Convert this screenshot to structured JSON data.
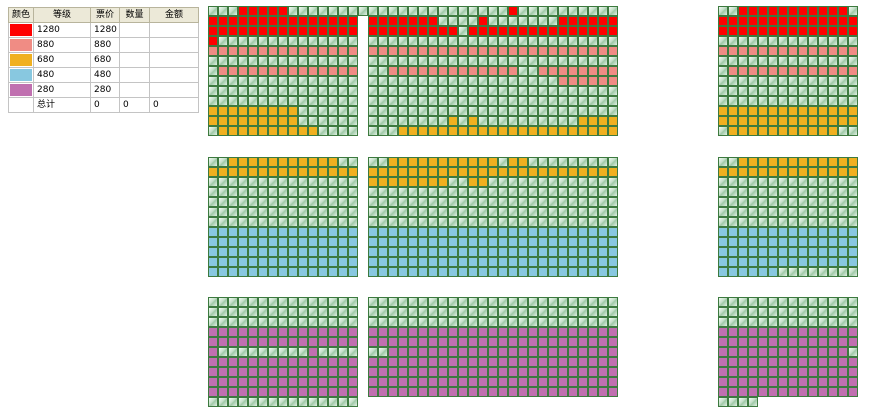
{
  "legend": {
    "headers": [
      "颜色",
      "等级",
      "票价",
      "数量",
      "金额"
    ],
    "rows": [
      {
        "color": "#ff0000",
        "level": "1280",
        "price": "1280",
        "qty": "",
        "amount": ""
      },
      {
        "color": "#f08c84",
        "level": "880",
        "price": "880",
        "qty": "",
        "amount": ""
      },
      {
        "color": "#f0b020",
        "level": "680",
        "price": "680",
        "qty": "",
        "amount": ""
      },
      {
        "color": "#88c8e0",
        "level": "480",
        "price": "480",
        "qty": "",
        "amount": ""
      },
      {
        "color": "#c070b0",
        "level": "280",
        "price": "280",
        "qty": "",
        "amount": ""
      }
    ],
    "total": {
      "label": "总计",
      "price": "0",
      "qty": "0",
      "amount": "0"
    }
  },
  "seat_colors": {
    "R": "#ff0000",
    "P": "#f08c84",
    "Y": "#f0b020",
    "B": "#88c8e0",
    "M": "#c070b0"
  },
  "blocks": [
    {
      "id": "top-left",
      "rows": [
        "...RRRRR.........",
        "RRRRRRRRRRRRRRR",
        "RRRRRRRRRRRRRRR",
        "R..............",
        "PPPPPPPPPPPPPPP",
        "...............",
        ".PPPPPPPPPPPPPP",
        "...............",
        "...............",
        "...............",
        "YYYYYYYYY......",
        "YYYYYYYYY......",
        ".YYYYYYYYYY...."
      ]
    },
    {
      "id": "top-center",
      "rows": [
        "..............R..........",
        "RRRRRRR....R.......RRRRRR",
        "RRRRRRRRR.RRRRRRRRRRRRRRR",
        ".........................",
        "PPPPPPPPPPPPPPPPPPPPPPPPP",
        ".........................",
        "..PPPPPPPPPPPPP..PPPPPPPP",
        "...................PPPPPP",
        ".........................",
        ".........................",
        ".........................",
        "........Y.Y..........YYYY",
        "...YYYYYYYYYYYYYYYYYYYYYY"
      ]
    },
    {
      "id": "top-right",
      "rows": [
        "..RRRRRRRRRRR.",
        "RRRRRRRRRRRRRR",
        "RRRRRRRRRRRRRR",
        "..............",
        "PPPPPPPPPPPPPP",
        "..............",
        ".PPPPPPPPPPPPP",
        "..............",
        "..............",
        "..............",
        "YYYYYYYYYYYYYY",
        "YYYYYYYYYYYYYY",
        ".YYYYYYYYYYY.."
      ]
    },
    {
      "id": "mid-left",
      "rows": [
        "..YYYYYYYYYYY..",
        "YYYYYYYYYYYYYYY",
        "...............",
        "...............",
        "...............",
        "...............",
        "...............",
        "BBBBBBBBBBBBBBB",
        "BBBBBBBBBBBBBBB",
        "BBBBBBBBBBBBBBB",
        "BBBBBBBBBBBBBBB",
        "BBBBBBBBBBBBBBB"
      ]
    },
    {
      "id": "mid-center",
      "rows": [
        "..YYYYYYYYYYY.YY.........",
        "YYYYYYYYYYYYYYYYYYYYYYYYY",
        "YYYYYYYY..YY.............",
        ".........................",
        ".........................",
        ".........................",
        ".........................",
        "BBBBBBBBBBBBBBBBBBBBBBBBB",
        "BBBBBBBBBBBBBBBBBBBBBBBBB",
        "BBBBBBBBBBBBBBBBBBBBBBBBB",
        "BBBBBBBBBBBBBBBBBBBBBBBBB",
        "BBBBBBBBBBBBBBBBBBBBBBBBB"
      ]
    },
    {
      "id": "mid-right",
      "rows": [
        "..YYYYYYYYYYYY",
        "YYYYYYYYYYYYYY",
        "..............",
        "..............",
        "..............",
        "..............",
        "..............",
        "BBBBBBBBBBBBBB",
        "BBBBBBBBBBBBBB",
        "BBBBBBBBBBBBBB",
        "BBBBBBBBBBBBBB",
        "BBBBBB........"
      ]
    },
    {
      "id": "bot-left",
      "rows": [
        "...............",
        "...............",
        "...............",
        "MMMMMMMMMMMMMMM",
        "MMMMMMMMMMMMMMM",
        "M.........M....",
        "MMMMMMMMMMMMMMM",
        "MMMMMMMMMMMMMMM",
        "MMMMMMMMMMMMMMM",
        "MMMMMMMMMMMMMMM",
        "...........    "
      ]
    },
    {
      "id": "bot-center",
      "rows": [
        ".........................",
        ".........................",
        ".........................",
        "MMMMMMMMMMMMMMMMMMMMMMMMM",
        "MMMMMMMMMMMMMMMMMMMMMMMMM",
        "..MMMMMMMMMMMMMMMMMMMMMMM",
        "MMMMMMMMMMMMMMMMMMMMMMMMM",
        "MMMMMMMMMMMMMMMMMMMMMMMMM",
        "MMMMMMMMMMMMMMMMMMMMMMMMM",
        "MMMMMMMMMMMMMMMMMMMMMMMMM"
      ]
    },
    {
      "id": "bot-right",
      "rows": [
        "..............",
        "..............",
        "..............",
        "MMMMMMMMMMMMMM",
        "MMMMMMMMMMMMMM",
        "MMMMMMMMMMMMM.",
        "MMMMMMMMMMMMMM",
        "MMMMMMMMMMMMMM",
        "MMMMMMMMMMMMMM",
        "MMMMMMMMMMMMMM",
        "....          "
      ]
    }
  ]
}
